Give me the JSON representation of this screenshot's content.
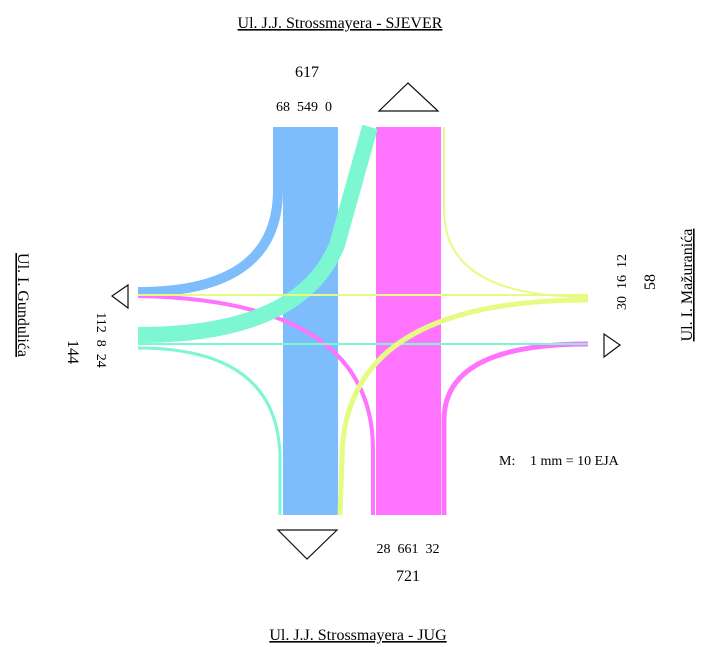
{
  "streets": {
    "north": "Ul. J.J. Strossmayera - SJEVER",
    "south": "Ul. J.J. Strossmayera - JUG",
    "west": "Ul. I. Gundulića",
    "east": "Ul. I. Mažuranića"
  },
  "approaches": {
    "north": {
      "total": "617",
      "counts": "68  549  0"
    },
    "south": {
      "total": "721",
      "counts": "28  661  32"
    },
    "west": {
      "total": "144",
      "counts": "112  8  24"
    },
    "east": {
      "total": "58",
      "counts": "30  16  12"
    }
  },
  "scale": {
    "prefix": "M:",
    "value": "1 mm = 10 EJA"
  },
  "colors": {
    "north_flow": "#7dbdfb",
    "south_flow": "#ff73ff",
    "west_flow": "#7df6d2",
    "east_flow": "#e6fb83"
  },
  "chart_data": {
    "type": "flow",
    "unit": "EJA",
    "flows": [
      {
        "from": "north",
        "direction": "right",
        "value": 68
      },
      {
        "from": "north",
        "direction": "through",
        "value": 549
      },
      {
        "from": "north",
        "direction": "left",
        "value": 0
      },
      {
        "from": "south",
        "direction": "left",
        "value": 28
      },
      {
        "from": "south",
        "direction": "through",
        "value": 661
      },
      {
        "from": "south",
        "direction": "right",
        "value": 32
      },
      {
        "from": "west",
        "direction": "left",
        "value": 112
      },
      {
        "from": "west",
        "direction": "through",
        "value": 8
      },
      {
        "from": "west",
        "direction": "right",
        "value": 24
      },
      {
        "from": "east",
        "direction": "left",
        "value": 30
      },
      {
        "from": "east",
        "direction": "through",
        "value": 16
      },
      {
        "from": "east",
        "direction": "right",
        "value": 12
      }
    ]
  }
}
